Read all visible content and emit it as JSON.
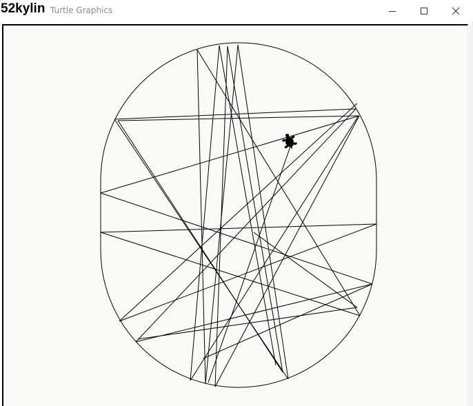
{
  "window": {
    "app_name": "52kylin",
    "title": "Turtle Graphics",
    "controls": {
      "minimize_icon": "minimize-icon",
      "maximize_icon": "maximize-icon",
      "close_icon": "close-icon"
    }
  },
  "canvas": {
    "background": "#f9f9f7",
    "pen_color": "#000000",
    "turtle_icon": "turtle-icon"
  }
}
